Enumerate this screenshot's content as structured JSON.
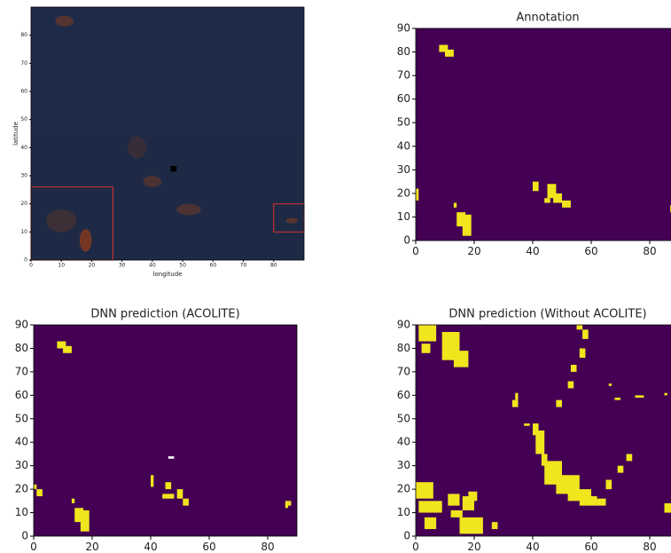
{
  "chart_data": [
    {
      "type": "image",
      "xlabel": "longitude",
      "ylabel": "latitude",
      "xlim": [
        0,
        90
      ],
      "ylim": [
        0,
        90
      ],
      "xticks": [
        0,
        10,
        20,
        30,
        40,
        50,
        60,
        70,
        80
      ],
      "yticks": [
        0,
        10,
        20,
        30,
        40,
        50,
        60,
        70,
        80
      ]
    },
    {
      "type": "image",
      "title": "Annotation",
      "xlim": [
        0,
        90
      ],
      "ylim": [
        0,
        90
      ],
      "xticks": [
        0,
        20,
        40,
        60,
        80
      ],
      "yticks": [
        0,
        10,
        20,
        30,
        40,
        50,
        60,
        70,
        80,
        90
      ]
    },
    {
      "type": "image",
      "title": "DNN prediction (ACOLITE)",
      "xlim": [
        0,
        90
      ],
      "ylim": [
        0,
        90
      ],
      "xticks": [
        0,
        20,
        40,
        60,
        80
      ],
      "yticks": [
        0,
        10,
        20,
        30,
        40,
        50,
        60,
        70,
        80,
        90
      ]
    },
    {
      "type": "image",
      "title": "DNN prediction (Without ACOLITE)",
      "xlim": [
        0,
        90
      ],
      "ylim": [
        0,
        90
      ],
      "xticks": [
        0,
        20,
        40,
        60,
        80
      ],
      "yticks": [
        0,
        10,
        20,
        30,
        40,
        50,
        60,
        70,
        80,
        90
      ]
    }
  ]
}
